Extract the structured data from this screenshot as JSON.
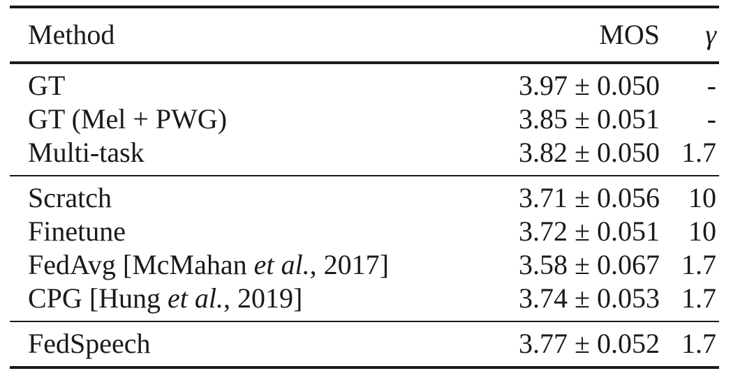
{
  "table": {
    "headers": {
      "method": "Method",
      "mos": "MOS",
      "gamma": "γ"
    },
    "groups": [
      {
        "rows": [
          {
            "method": "GT",
            "mos": "3.97 ± 0.050",
            "gamma": "-"
          },
          {
            "method": "GT (Mel + PWG)",
            "mos": "3.85 ± 0.051",
            "gamma": "-"
          },
          {
            "method": "Multi-task",
            "mos": "3.82 ± 0.050",
            "gamma": "1.7"
          }
        ]
      },
      {
        "rows": [
          {
            "method": "Scratch",
            "mos": "3.71 ± 0.056",
            "gamma": "10"
          },
          {
            "method": "Finetune",
            "mos": "3.72 ± 0.051",
            "gamma": "10"
          },
          {
            "method_parts": [
              "FedAvg [McMahan ",
              "et al.",
              ", 2017]"
            ],
            "mos": "3.58 ± 0.067",
            "gamma": "1.7"
          },
          {
            "method_parts": [
              "CPG [Hung ",
              "et al.",
              ", 2019]"
            ],
            "mos": "3.74 ± 0.053",
            "gamma": "1.7"
          }
        ]
      },
      {
        "rows": [
          {
            "method": "FedSpeech",
            "mos": "3.77 ± 0.052",
            "gamma": "1.7"
          }
        ]
      }
    ]
  }
}
